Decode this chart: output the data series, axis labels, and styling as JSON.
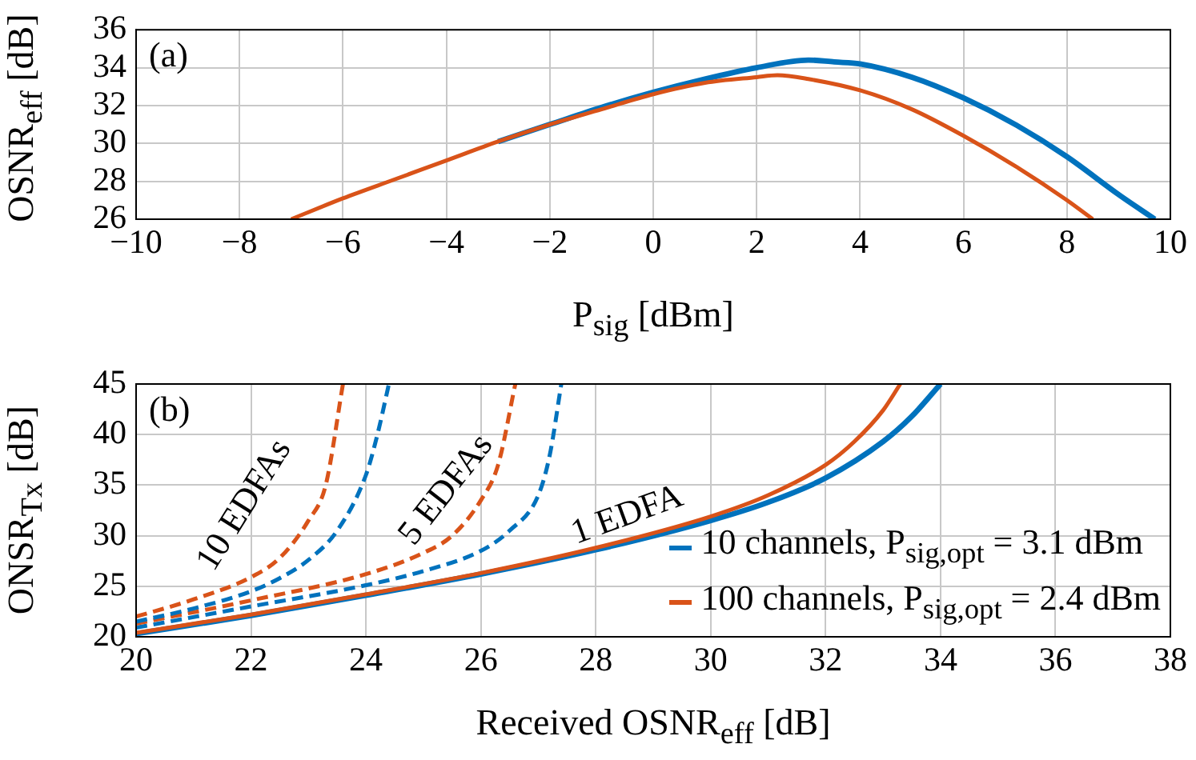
{
  "chart_data": [
    {
      "type": "line",
      "xlabel": "P$_{sig}$ [dBm]",
      "ylabel": "OSNR$_{eff}$ [dB]",
      "annotations": [
        "(a)"
      ],
      "xlim": [
        -10,
        10
      ],
      "xticks": [
        -10,
        -8,
        -6,
        -4,
        -2,
        0,
        2,
        4,
        6,
        8,
        10
      ],
      "ylim": [
        26,
        36
      ],
      "yticks": [
        26,
        28,
        30,
        32,
        34,
        36
      ],
      "grid": true,
      "marker": "none",
      "series": [
        {
          "color": "#0072bd",
          "x": [
            -3,
            -2,
            -1,
            0,
            1,
            2,
            3,
            3.5,
            4,
            5,
            6,
            7,
            8,
            9,
            9.7
          ],
          "values": [
            30.1,
            31,
            31.9,
            32.7,
            33.4,
            34,
            34.4,
            34.3,
            34.2,
            33.5,
            32.4,
            31,
            29.3,
            27.3,
            26
          ]
        },
        {
          "color": "#d95319",
          "x": [
            -7,
            -6,
            -5,
            -4,
            -3,
            -2,
            -1,
            0,
            1,
            2,
            2.4,
            3,
            4,
            5,
            6,
            7,
            8,
            8.5
          ],
          "values": [
            26,
            27.1,
            28.1,
            29.1,
            30.1,
            31,
            31.8,
            32.6,
            33.2,
            33.5,
            33.6,
            33.4,
            32.8,
            31.8,
            30.4,
            28.8,
            27,
            26
          ]
        }
      ]
    },
    {
      "type": "line",
      "xlabel": "Received OSNR$_{eff}$ [dB]",
      "ylabel": "ONSR$_{Tx}$ [dB]",
      "annotations": [
        "(b)",
        "10 EDFAs",
        "5 EDFAs",
        "1 EDFA"
      ],
      "xlim": [
        20,
        38
      ],
      "xticks": [
        20,
        22,
        24,
        26,
        28,
        30,
        32,
        34,
        36,
        38
      ],
      "ylim": [
        20,
        45
      ],
      "yticks": [
        20,
        25,
        30,
        35,
        40,
        45
      ],
      "grid": true,
      "marker": "none",
      "legend": "bottom right",
      "series": [
        {
          "name": "10 channels, P$_{sig,opt}$ = 3.1 dBm",
          "color": "#0072bd",
          "line_style": "solid",
          "x": [
            20,
            22,
            24,
            26,
            28,
            30,
            31,
            32,
            33,
            33.5,
            34
          ],
          "values": [
            20.3,
            22.1,
            24.1,
            26.2,
            28.6,
            31.5,
            33.3,
            35.7,
            39.3,
            41.8,
            45
          ]
        },
        {
          "name": "100 channels, P$_{sig,opt}$ = 2.4 dBm",
          "color": "#d95319",
          "line_style": "solid",
          "x": [
            20,
            22,
            24,
            26,
            28,
            30,
            31,
            32,
            32.5,
            33,
            33.3
          ],
          "values": [
            20.4,
            22.2,
            24.2,
            26.3,
            28.8,
            31.9,
            34,
            37,
            39.3,
            42.4,
            45
          ]
        },
        {
          "color": "#0072bd",
          "line_style": "dashed",
          "x": [
            20,
            22,
            24,
            25,
            26,
            26.5,
            27,
            27.2,
            27.4
          ],
          "values": [
            20.9,
            23,
            25.1,
            26.5,
            28.5,
            30.5,
            34,
            38,
            45
          ]
        },
        {
          "color": "#d95319",
          "line_style": "dashed",
          "x": [
            20,
            22,
            24,
            25,
            25.5,
            26,
            26.3,
            26.6
          ],
          "values": [
            21.3,
            23.6,
            26.2,
            28.3,
            30,
            33.5,
            37,
            45
          ]
        },
        {
          "color": "#0072bd",
          "line_style": "dashed",
          "x": [
            20,
            21,
            22,
            22.5,
            23,
            23.5,
            24,
            24.2,
            24.4
          ],
          "values": [
            21.5,
            22.8,
            24.5,
            25.8,
            27.6,
            30.5,
            36,
            40,
            45
          ]
        },
        {
          "color": "#d95319",
          "line_style": "dashed",
          "x": [
            20,
            21,
            22,
            22.5,
            23,
            23.3,
            23.6
          ],
          "values": [
            22,
            23.7,
            25.9,
            27.8,
            31.5,
            35,
            45
          ]
        }
      ]
    }
  ]
}
